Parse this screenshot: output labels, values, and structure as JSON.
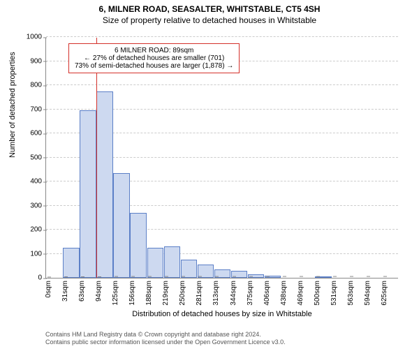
{
  "title": {
    "main": "6, MILNER ROAD, SEASALTER, WHITSTABLE, CT5 4SH",
    "sub": "Size of property relative to detached houses in Whitstable",
    "fontsize_main": 12,
    "fontsize_sub": 12
  },
  "chart": {
    "type": "histogram",
    "ylabel": "Number of detached properties",
    "xlabel": "Distribution of detached houses by size in Whitstable",
    "ylim": [
      0,
      1000
    ],
    "ytick_step": 100,
    "yticks": [
      0,
      100,
      200,
      300,
      400,
      500,
      600,
      700,
      800,
      900,
      1000
    ],
    "x_categories": [
      "0sqm",
      "31sqm",
      "63sqm",
      "94sqm",
      "125sqm",
      "156sqm",
      "188sqm",
      "219sqm",
      "250sqm",
      "281sqm",
      "313sqm",
      "344sqm",
      "375sqm",
      "406sqm",
      "438sqm",
      "469sqm",
      "500sqm",
      "531sqm",
      "563sqm",
      "594sqm",
      "625sqm"
    ],
    "values": [
      0,
      125,
      695,
      775,
      435,
      270,
      125,
      130,
      75,
      55,
      35,
      30,
      15,
      10,
      0,
      0,
      5,
      0,
      0,
      0,
      0
    ],
    "bar_fill": "#cdd9f0",
    "bar_stroke": "#5b7fc7",
    "grid_color": "#cccccc",
    "axis_color": "#888888",
    "background_color": "#ffffff",
    "label_fontsize": 11,
    "tick_fontsize": 10
  },
  "marker": {
    "value_sqm": 89,
    "color": "#d4302a"
  },
  "annotation": {
    "border_color": "#d4302a",
    "lines": [
      "6 MILNER ROAD: 89sqm",
      "← 27% of detached houses are smaller (701)",
      "73% of semi-detached houses are larger (1,878) →"
    ]
  },
  "footer": {
    "line1": "Contains HM Land Registry data © Crown copyright and database right 2024.",
    "line2": "Contains public sector information licensed under the Open Government Licence v3.0."
  }
}
